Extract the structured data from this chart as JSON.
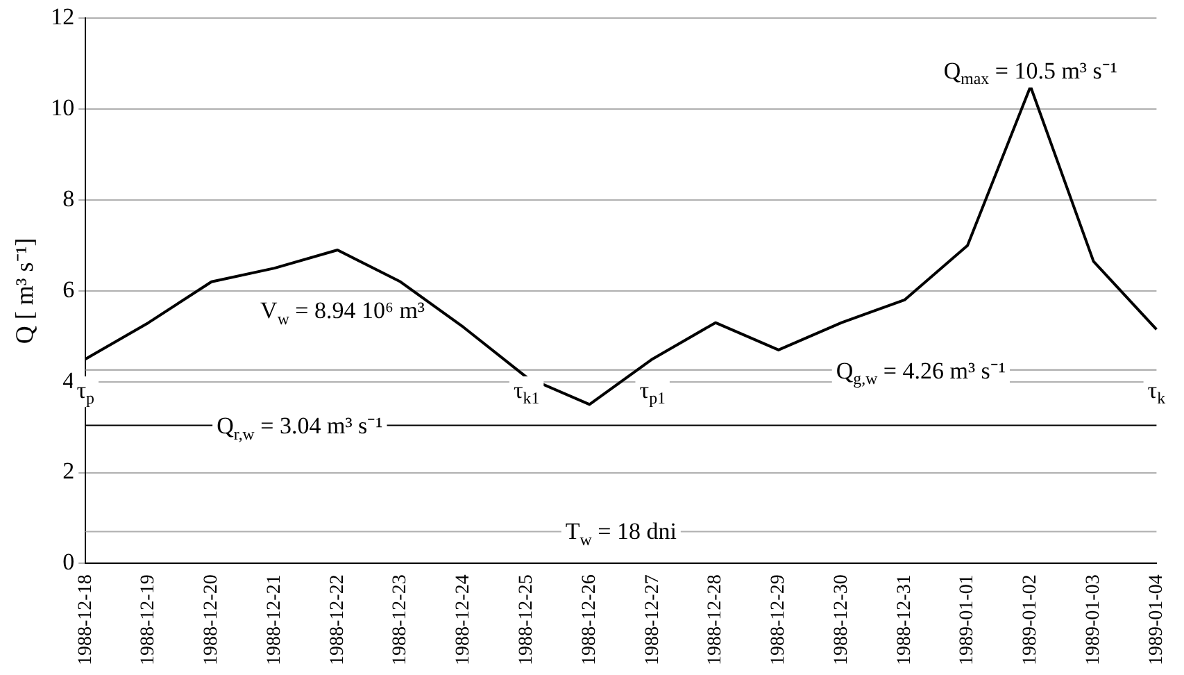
{
  "chart_data": {
    "type": "line",
    "ylabel": "Q [ m³ s⁻¹]",
    "categories": [
      "1988-12-18",
      "1988-12-19",
      "1988-12-20",
      "1988-12-21",
      "1988-12-22",
      "1988-12-23",
      "1988-12-24",
      "1988-12-25",
      "1988-12-26",
      "1988-12-27",
      "1988-12-28",
      "1988-12-29",
      "1988-12-30",
      "1988-12-31",
      "1989-01-01",
      "1989-01-02",
      "1989-01-03",
      "1989-01-04"
    ],
    "series": [
      {
        "color": "#000000",
        "values": [
          4.5,
          5.3,
          6.2,
          6.5,
          6.9,
          6.2,
          5.2,
          4.1,
          3.5,
          4.5,
          5.3,
          4.7,
          5.3,
          5.8,
          7.0,
          10.5,
          6.65,
          5.15
        ]
      }
    ],
    "ylim": [
      0,
      12
    ],
    "yticks": [
      0,
      2,
      4,
      6,
      8,
      10,
      12
    ],
    "grid": "y",
    "ref_lines": [
      {
        "axis": "y",
        "value": 4.26,
        "label": "Q$_{g,w}$ = 4.26 m³ s⁻¹",
        "color": "#a0a0a0"
      },
      {
        "axis": "y",
        "value": 3.04,
        "label": "Q$_{r,w}$ = 3.04 m³ s⁻¹",
        "color": "#000000"
      },
      {
        "axis": "y",
        "value": 0.7,
        "color": "#b0b0b0"
      }
    ],
    "annotations": [
      {
        "text": "Q$_{max}$ = 10.5 m³ s⁻¹",
        "x": "1989-01-02",
        "y": 10.5
      },
      {
        "text": "τ$_{p}$",
        "x": "1988-12-18",
        "y": 4.26
      },
      {
        "text": "τ$_{k1}$",
        "x": "1988-12-25",
        "y": 4.26
      },
      {
        "text": "τ$_{p1}$",
        "x": "1988-12-27",
        "y": 4.26
      },
      {
        "text": "τ$_{k}$",
        "x": "1989-01-04",
        "y": 4.26
      },
      "V$_{w}$ = 8.94 10⁶ m³",
      "T$_{w}$ = 18 dni"
    ]
  }
}
